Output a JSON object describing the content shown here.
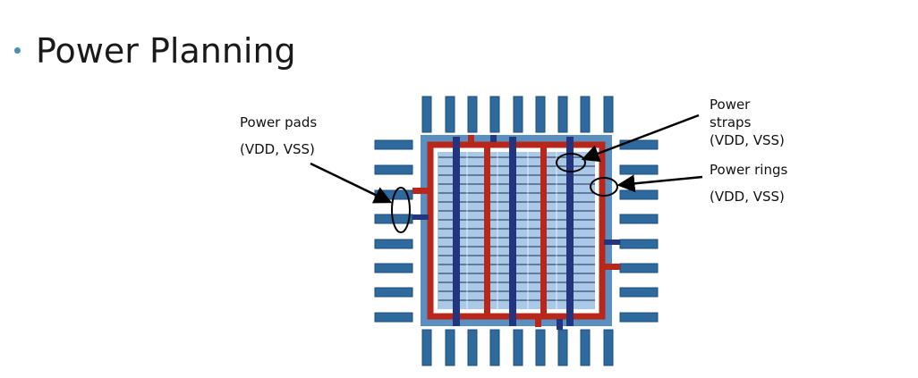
{
  "slide": {
    "title": "Power Planning"
  },
  "labels": {
    "pads_line1": "Power pads",
    "pads_line2": "(VDD, VSS)",
    "straps_line1": "Power",
    "straps_line2": "straps",
    "straps_line3": "(VDD, VSS)",
    "rings_line1": "Power rings",
    "rings_line2": "(VDD, VSS)"
  },
  "colors": {
    "pad": "#2f6a9e",
    "pad_stroke": "#1d4f7a",
    "chip_border": "#5b8fbf",
    "core_fill": "#a9c9e6",
    "row_line": "#1a2a5a",
    "vss_ring": "#b8271a",
    "vdd_strap": "#23357f",
    "annotation": "#000000"
  }
}
